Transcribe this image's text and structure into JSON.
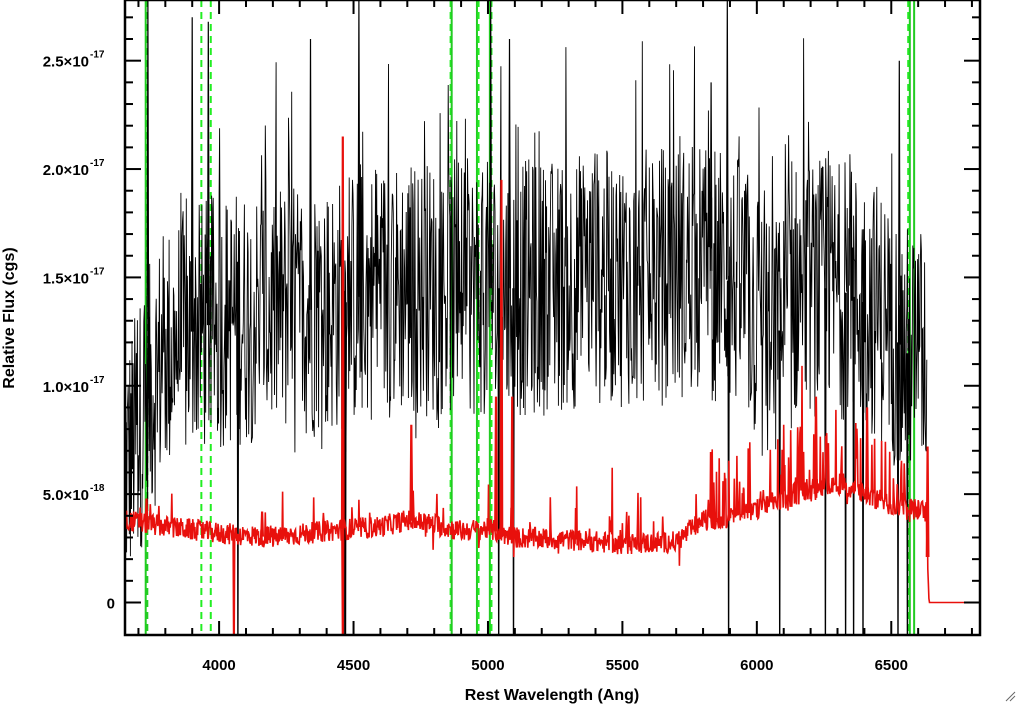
{
  "chart_data": {
    "type": "line",
    "title": "",
    "xlabel": "Rest Wavelength (Ang)",
    "ylabel": "Relative Flux (cgs)",
    "xlim": [
      3650,
      6830
    ],
    "ylim": [
      -1.5e-18,
      2.78e-17
    ],
    "x_ticks": [
      4000,
      4500,
      5000,
      5500,
      6000,
      6500
    ],
    "x_tick_labels": [
      "4000",
      "4500",
      "5000",
      "5500",
      "6000",
      "6500"
    ],
    "y_ticks": [
      {
        "value": 0,
        "mantissa": "0",
        "exponent": ""
      },
      {
        "value": 5e-18,
        "mantissa": "5.0×10",
        "exponent": "-18"
      },
      {
        "value": 1e-17,
        "mantissa": "1.0×10",
        "exponent": "-17"
      },
      {
        "value": 1.5e-17,
        "mantissa": "1.5×10",
        "exponent": "-17"
      },
      {
        "value": 2e-17,
        "mantissa": "2.0×10",
        "exponent": "-17"
      },
      {
        "value": 2.5e-17,
        "mantissa": "2.5×10",
        "exponent": "-17"
      }
    ],
    "grid": false,
    "series": [
      {
        "color": "#000000",
        "style": "solid",
        "approx_points": [
          [
            3650,
            6e-18
          ],
          [
            3700,
            8e-18
          ],
          [
            3750,
            1e-17
          ],
          [
            3800,
            1.15e-17
          ],
          [
            3900,
            1.25e-17
          ],
          [
            4000,
            1.3e-17
          ],
          [
            4200,
            1.35e-17
          ],
          [
            4400,
            1.35e-17
          ],
          [
            4600,
            1.45e-17
          ],
          [
            4800,
            1.45e-17
          ],
          [
            5000,
            1.45e-17
          ],
          [
            5200,
            1.45e-17
          ],
          [
            5400,
            1.5e-17
          ],
          [
            5600,
            1.5e-17
          ],
          [
            5800,
            1.55e-17
          ],
          [
            5950,
            1.45e-17
          ],
          [
            6050,
            1.15e-17
          ],
          [
            6150,
            1.45e-17
          ],
          [
            6300,
            1.45e-17
          ],
          [
            6450,
            1.35e-17
          ],
          [
            6550,
            1.15e-17
          ],
          [
            6630,
            1.15e-17
          ]
        ],
        "noise_amplitude": 6e-18,
        "spikes": [
          {
            "x": 3735,
            "y": 2.78e-17
          },
          {
            "x": 3900,
            "y": 2.7e-17
          },
          {
            "x": 3960,
            "y": 2.68e-17
          },
          {
            "x": 4340,
            "y": 2.6e-17
          },
          {
            "x": 4520,
            "y": 2.78e-17
          },
          {
            "x": 5010,
            "y": 2.78e-17
          },
          {
            "x": 5080,
            "y": 2.6e-17
          },
          {
            "x": 5830,
            "y": 2.4e-17
          },
          {
            "x": 5890,
            "y": 2.78e-17
          },
          {
            "x": 6530,
            "y": 2.5e-17
          }
        ],
        "dips": [
          4070,
          4465,
          4470,
          5040,
          5095,
          5895,
          6085,
          6255,
          6330,
          6360,
          6395,
          6525,
          6560
        ]
      },
      {
        "color": "#e8100c",
        "style": "solid",
        "approx_points": [
          [
            3650,
            3.8e-18
          ],
          [
            3700,
            3.7e-18
          ],
          [
            3750,
            3.6e-18
          ],
          [
            3800,
            3.5e-18
          ],
          [
            4000,
            3.2e-18
          ],
          [
            4200,
            3e-18
          ],
          [
            4400,
            3.3e-18
          ],
          [
            4600,
            3.5e-18
          ],
          [
            4700,
            3.8e-18
          ],
          [
            4800,
            3.6e-18
          ],
          [
            4900,
            3.3e-18
          ],
          [
            5000,
            3.4e-18
          ],
          [
            5100,
            3e-18
          ],
          [
            5300,
            2.9e-18
          ],
          [
            5500,
            2.7e-18
          ],
          [
            5700,
            2.8e-18
          ],
          [
            5800,
            3.8e-18
          ],
          [
            5950,
            4e-18
          ],
          [
            6100,
            4.8e-18
          ],
          [
            6300,
            5.5e-18
          ],
          [
            6500,
            4.5e-18
          ],
          [
            6630,
            4.2e-18
          ],
          [
            6640,
            0.0
          ],
          [
            6830,
            0.0
          ]
        ],
        "noise_amplitude": 5e-19,
        "peaks": [
          {
            "x": 3730,
            "y": 4.8e-18
          },
          {
            "x": 4160,
            "y": 4.2e-18
          },
          {
            "x": 4460,
            "y": 2.15e-17
          },
          {
            "x": 4715,
            "y": 8.2e-18
          },
          {
            "x": 5030,
            "y": 9.5e-18
          },
          {
            "x": 5050,
            "y": 1.95e-17
          },
          {
            "x": 5090,
            "y": 9.5e-18
          },
          {
            "x": 6220,
            "y": 9.5e-18
          },
          {
            "x": 6410,
            "y": 9e-18
          },
          {
            "x": 6635,
            "y": 7.2e-18
          }
        ],
        "dips": [
          4055,
          4460
        ]
      }
    ],
    "vertical_lines": [
      {
        "x": 3727,
        "color": "#22cc22",
        "style": "solid"
      },
      {
        "x": 3733,
        "color": "#22cc22",
        "style": "dashed"
      },
      {
        "x": 3934,
        "color": "#22ee22",
        "style": "dashed"
      },
      {
        "x": 3969,
        "color": "#22ee22",
        "style": "dashed"
      },
      {
        "x": 4861,
        "color": "#22ee22",
        "style": "dashed"
      },
      {
        "x": 4865,
        "color": "#22cc22",
        "style": "solid"
      },
      {
        "x": 4959,
        "color": "#22cc22",
        "style": "solid"
      },
      {
        "x": 4965,
        "color": "#22ee22",
        "style": "dashed"
      },
      {
        "x": 5007,
        "color": "#22cc22",
        "style": "solid"
      },
      {
        "x": 5013,
        "color": "#22ee22",
        "style": "dashed"
      },
      {
        "x": 6563,
        "color": "#22ee22",
        "style": "dashed"
      },
      {
        "x": 6569,
        "color": "#22cc22",
        "style": "solid"
      },
      {
        "x": 6585,
        "color": "#22cc22",
        "style": "solid"
      }
    ]
  },
  "window": {
    "resize_grip_icon": "resize-grip-icon"
  }
}
